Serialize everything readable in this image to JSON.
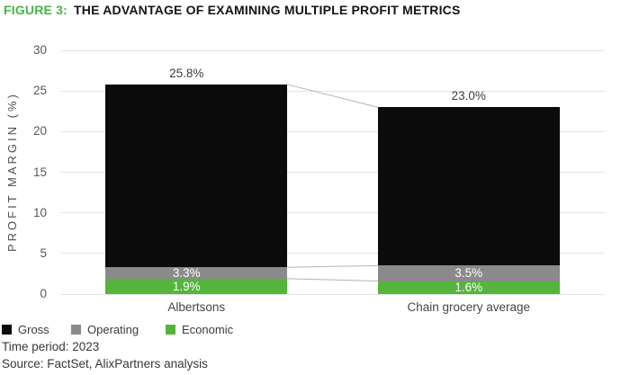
{
  "header": {
    "figure_label": "FIGURE 3:",
    "title": "THE ADVANTAGE OF EXAMINING MULTIPLE PROFIT METRICS"
  },
  "chart_data": {
    "type": "bar",
    "variant": "overlaid-columns-with-segment-connectors",
    "title": "FIGURE 3: THE ADVANTAGE OF EXAMINING MULTIPLE PROFIT METRICS",
    "categories": [
      "Albertsons",
      "Chain grocery average"
    ],
    "series": [
      {
        "name": "Gross",
        "color": "#0b0b0b",
        "values": [
          25.8,
          23.0
        ],
        "data_labels": [
          "25.8%",
          "23.0%"
        ],
        "label_style": "above-bar"
      },
      {
        "name": "Operating",
        "color": "#8a8a8a",
        "values": [
          3.3,
          3.5
        ],
        "data_labels": [
          "3.3%",
          "3.5%"
        ],
        "label_style": "inside-white"
      },
      {
        "name": "Economic",
        "color": "#55b43c",
        "values": [
          1.9,
          1.6
        ],
        "data_labels": [
          "1.9%",
          "1.6%"
        ],
        "label_style": "inside-white"
      }
    ],
    "ylabel": "PROFIT MARGIN (%)",
    "xlabel": "",
    "ylim": [
      0,
      30
    ],
    "yticks": [
      0,
      5,
      10,
      15,
      20,
      25,
      30
    ],
    "grid": "horizontal",
    "legend_position": "bottom-left",
    "connectors_between_bars": true
  },
  "footer": {
    "time_period": "Time period: 2023",
    "source": "Source: FactSet, AlixPartners analysis"
  },
  "colors": {
    "figure_label_green": "#45b549",
    "gross_black": "#0b0b0b",
    "operating_gray": "#8a8a8a",
    "economic_green": "#55b43c",
    "gridline": "#e4e4e4",
    "connector_line": "#b3b3b3"
  }
}
